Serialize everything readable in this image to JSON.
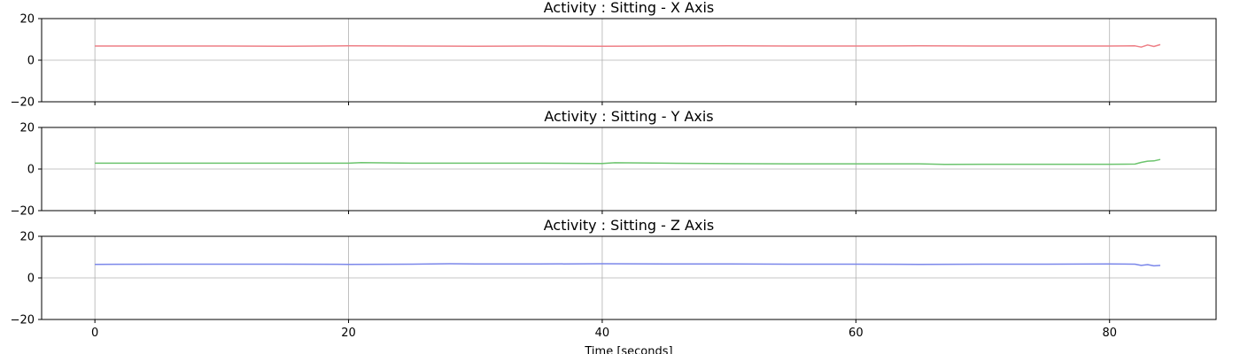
{
  "chart_data": [
    {
      "type": "line",
      "title": "Activity : Sitting - X Axis",
      "xlabel": "",
      "ylabel": "",
      "xlim": [
        -4.2,
        88.4
      ],
      "ylim": [
        -20,
        20
      ],
      "xticks": [
        0,
        20,
        40,
        60,
        80
      ],
      "yticks": [
        -20,
        0,
        20
      ],
      "grid": true,
      "color": "#ee7f86",
      "series": [
        {
          "x": [
            0,
            5,
            10,
            15,
            20,
            25,
            30,
            35,
            40,
            45,
            50,
            55,
            60,
            65,
            70,
            75,
            80,
            82,
            82.5,
            83,
            83.5,
            84
          ],
          "values": [
            6.8,
            6.8,
            6.8,
            6.7,
            6.9,
            6.8,
            6.7,
            6.8,
            6.7,
            6.8,
            6.9,
            6.8,
            6.8,
            6.9,
            6.8,
            6.8,
            6.8,
            6.9,
            6.3,
            7.3,
            6.6,
            7.5
          ]
        }
      ]
    },
    {
      "type": "line",
      "title": "Activity : Sitting - Y Axis",
      "xlabel": "",
      "ylabel": "",
      "xlim": [
        -4.2,
        88.4
      ],
      "ylim": [
        -20,
        20
      ],
      "xticks": [
        0,
        20,
        40,
        60,
        80
      ],
      "yticks": [
        -20,
        0,
        20
      ],
      "grid": true,
      "color": "#6cc46e",
      "series": [
        {
          "x": [
            0,
            5,
            10,
            15,
            20,
            21,
            25,
            30,
            35,
            40,
            41,
            45,
            50,
            55,
            60,
            65,
            67,
            70,
            75,
            80,
            82,
            82.5,
            83,
            83.5,
            84
          ],
          "values": [
            2.8,
            2.8,
            2.8,
            2.8,
            2.8,
            3.1,
            2.8,
            2.8,
            2.8,
            2.7,
            3.0,
            2.8,
            2.6,
            2.5,
            2.5,
            2.5,
            2.2,
            2.3,
            2.3,
            2.3,
            2.4,
            3.2,
            3.8,
            3.9,
            4.6
          ]
        }
      ]
    },
    {
      "type": "line",
      "title": "Activity : Sitting - Z Axis",
      "xlabel": "Time [seconds]",
      "ylabel": "",
      "xlim": [
        -4.2,
        88.4
      ],
      "ylim": [
        -20,
        20
      ],
      "xticks": [
        0,
        20,
        40,
        60,
        80
      ],
      "yticks": [
        -20,
        0,
        20
      ],
      "grid": true,
      "color": "#7b87ea",
      "series": [
        {
          "x": [
            0,
            5,
            10,
            15,
            20,
            25,
            28,
            30,
            35,
            40,
            45,
            50,
            55,
            60,
            65,
            70,
            75,
            80,
            82,
            82.5,
            83,
            83.5,
            84
          ],
          "values": [
            6.5,
            6.6,
            6.6,
            6.6,
            6.5,
            6.6,
            6.8,
            6.7,
            6.7,
            6.8,
            6.7,
            6.7,
            6.6,
            6.6,
            6.5,
            6.6,
            6.6,
            6.7,
            6.6,
            6.0,
            6.4,
            5.8,
            6.0
          ]
        }
      ]
    }
  ]
}
